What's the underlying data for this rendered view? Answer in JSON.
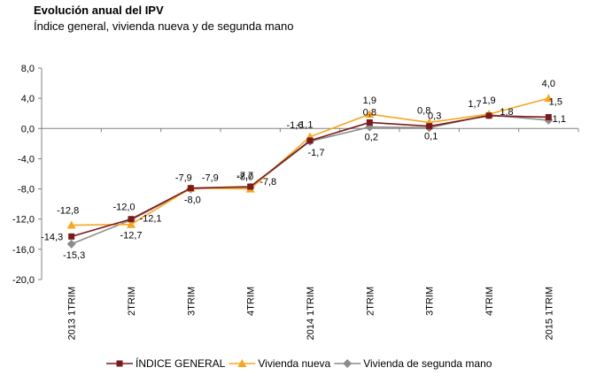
{
  "chart_data": {
    "type": "line",
    "title": "Evolución anual del IPV",
    "subtitle": "Índice general, vivienda nueva y de segunda mano",
    "categories": [
      "2013 1TRIM",
      "2TRIM",
      "3TRIM",
      "4TRIM",
      "2014 1TRIM",
      "2TRIM",
      "3TRIM",
      "4TRIM",
      "2015 1TRIM"
    ],
    "y_ticks": [
      "8,0",
      "4,0",
      "0,0",
      "-4,0",
      "-8,0",
      "-12,0",
      "-16,0",
      "-20,0"
    ],
    "ylim": [
      -20,
      8
    ],
    "grid": false,
    "legend_position": "bottom",
    "series": [
      {
        "name": "ÍNDICE GENERAL",
        "color": "#7b1a1a",
        "marker": "square",
        "values": [
          -14.3,
          -12.0,
          -7.9,
          -7.7,
          -1.6,
          0.8,
          0.3,
          1.7,
          1.5
        ],
        "labels": [
          "-14,3",
          "-12,0",
          "-7,9",
          "-7,7",
          "-1,6",
          "0,8",
          "0,3",
          "1,7",
          "1,5"
        ]
      },
      {
        "name": "Vivienda nueva",
        "color": "#f5a623",
        "marker": "triangle",
        "values": [
          -12.8,
          -12.7,
          -7.9,
          -8.0,
          -1.1,
          1.9,
          0.8,
          1.9,
          4.0
        ],
        "labels": [
          "-12,8",
          "-12,7",
          "-7,9",
          "-8,0",
          "-1,1",
          "1,9",
          "0,8",
          "1,9",
          "4,0"
        ]
      },
      {
        "name": "Vivienda de segunda mano",
        "color": "#8c8c8c",
        "marker": "diamond",
        "values": [
          -15.3,
          -12.1,
          -8.0,
          -7.8,
          -1.7,
          0.2,
          0.1,
          1.8,
          1.1
        ],
        "labels": [
          "-15,3",
          "-12,1",
          "-8,0",
          "-7,8",
          "-1,7",
          "0,2",
          "0,1",
          "1,8",
          "1,1"
        ]
      }
    ]
  }
}
